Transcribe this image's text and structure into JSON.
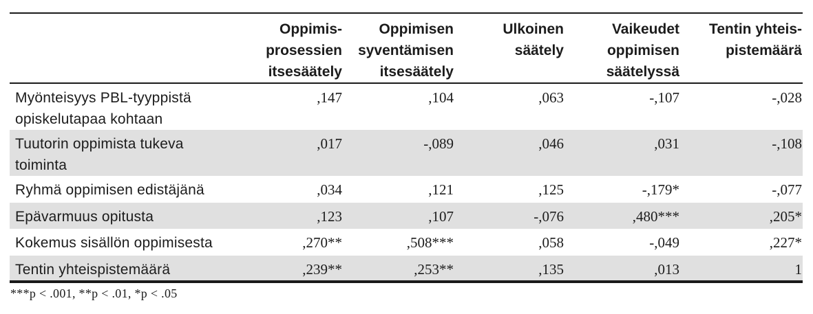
{
  "table": {
    "column_headers": [
      "",
      "Oppimis-\nprosessien\nitsesäätely",
      "Oppimisen\nsyventämisen\nitsesäätely",
      "Ulkoinen\nsäätely",
      "Vaikeudet\noppimisen\nsäätelyssä",
      "Tentin yhteis-\npistemäärä"
    ],
    "rows": [
      {
        "label": "Myönteisyys PBL-tyyppistä\nopiskelutapaa kohtaan",
        "values": [
          ",147",
          ",104",
          ",063",
          "-,107",
          "-,028"
        ]
      },
      {
        "label": "Tuutorin oppimista tukeva\ntoiminta",
        "values": [
          ",017",
          "-,089",
          ",046",
          ",031",
          "-,108"
        ]
      },
      {
        "label": "Ryhmä oppimisen edistäjänä",
        "values": [
          ",034",
          ",121",
          ",125",
          "-,179*",
          "-,077"
        ]
      },
      {
        "label": "Epävarmuus opitusta",
        "values": [
          ",123",
          ",107",
          "-,076",
          ",480***",
          ",205*"
        ]
      },
      {
        "label": "Kokemus sisällön oppimisesta",
        "values": [
          ",270**",
          ",508***",
          ",058",
          "-,049",
          ",227*"
        ]
      },
      {
        "label": "Tentin yhteispistemäärä",
        "values": [
          ",239**",
          ",253**",
          ",135",
          ",013",
          "1"
        ]
      }
    ],
    "footnote": "***p < .001, **p < .01, *p < .05"
  },
  "colors": {
    "shaded_row": "#e0e0e0",
    "rule": "#1a1a1a",
    "text": "#1c1c1c",
    "background": "#ffffff"
  }
}
